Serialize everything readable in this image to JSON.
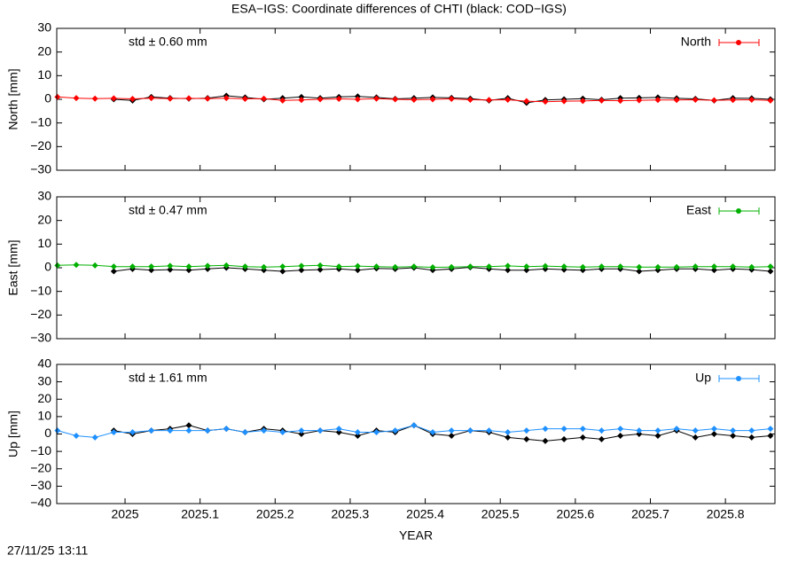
{
  "title": "ESA−IGS: Coordinate differences of CHTI (black: COD−IGS)",
  "timestamp": "27/11/25 13:11",
  "chart_data": [
    {
      "type": "line",
      "ylabel": "North [mm]",
      "annotation": "std ± 0.60 mm",
      "annotation_color": "#ff0000",
      "legend": "top-right",
      "x": [
        2024.91,
        2024.935,
        2024.96,
        2024.985,
        2025.01,
        2025.035,
        2025.06,
        2025.085,
        2025.11,
        2025.135,
        2025.16,
        2025.185,
        2025.21,
        2025.235,
        2025.26,
        2025.285,
        2025.31,
        2025.335,
        2025.36,
        2025.385,
        2025.41,
        2025.435,
        2025.46,
        2025.485,
        2025.51,
        2025.535,
        2025.56,
        2025.585,
        2025.61,
        2025.635,
        2025.66,
        2025.685,
        2025.71,
        2025.735,
        2025.76,
        2025.785,
        2025.81,
        2025.835,
        2025.86
      ],
      "xlim": [
        2024.909,
        2025.866
      ],
      "ylim": [
        -30,
        30
      ],
      "yticks": [
        {
          "value": -30,
          "label": "−30"
        },
        {
          "value": -20,
          "label": "−20"
        },
        {
          "value": -10,
          "label": "−10"
        },
        0,
        10,
        20,
        30
      ],
      "series": [
        {
          "color": "#000000",
          "values": [
            null,
            null,
            null,
            0,
            -0.5,
            1,
            0.5,
            0.3,
            0.5,
            1.5,
            0.8,
            0,
            0.5,
            1,
            0.5,
            1,
            1.2,
            0.8,
            0.2,
            0.5,
            0.8,
            0.6,
            0.3,
            -0.5,
            0.5,
            -1.5,
            -0.3,
            0,
            0.3,
            -0.2,
            0.5,
            0.6,
            0.8,
            0.4,
            0.2,
            -0.5,
            0.5,
            0.4,
            0
          ]
        },
        {
          "name": "North",
          "color": "#ff0000",
          "values": [
            1,
            0.5,
            0.3,
            0.4,
            0.2,
            0.5,
            0.3,
            0.4,
            0.3,
            0.5,
            0.2,
            0.3,
            -0.5,
            -0.3,
            0,
            0.2,
            0,
            0.3,
            0,
            -0.2,
            0,
            0.2,
            -0.2,
            -0.3,
            -0.2,
            -0.8,
            -1,
            -0.8,
            -0.7,
            -0.5,
            -0.6,
            -0.4,
            -0.3,
            -0.3,
            -0.2,
            -0.4,
            -0.3,
            -0.2,
            -0.5
          ]
        }
      ]
    },
    {
      "type": "line",
      "ylabel": "East [mm]",
      "annotation": "std ± 0.47 mm",
      "annotation_color": "#00b000",
      "legend": "top-right",
      "x": [
        2024.91,
        2024.935,
        2024.96,
        2024.985,
        2025.01,
        2025.035,
        2025.06,
        2025.085,
        2025.11,
        2025.135,
        2025.16,
        2025.185,
        2025.21,
        2025.235,
        2025.26,
        2025.285,
        2025.31,
        2025.335,
        2025.36,
        2025.385,
        2025.41,
        2025.435,
        2025.46,
        2025.485,
        2025.51,
        2025.535,
        2025.56,
        2025.585,
        2025.61,
        2025.635,
        2025.66,
        2025.685,
        2025.71,
        2025.735,
        2025.76,
        2025.785,
        2025.81,
        2025.835,
        2025.86
      ],
      "xlim": [
        2024.909,
        2025.866
      ],
      "ylim": [
        -30,
        30
      ],
      "yticks": [
        {
          "value": -30,
          "label": "−30"
        },
        {
          "value": -20,
          "label": "−20"
        },
        {
          "value": -10,
          "label": "−10"
        },
        0,
        10,
        20,
        30
      ],
      "series": [
        {
          "color": "#000000",
          "values": [
            null,
            null,
            null,
            -1.5,
            -0.5,
            -1,
            -0.8,
            -1,
            -0.5,
            0,
            -0.5,
            -1,
            -1.5,
            -1,
            -0.8,
            -0.5,
            -1,
            -0.3,
            -0.5,
            0,
            -1,
            -0.5,
            0.2,
            -0.5,
            -1,
            -1,
            -0.5,
            -0.8,
            -1,
            -0.5,
            -0.5,
            -1.5,
            -1,
            -0.5,
            -0.5,
            -1,
            -0.5,
            -0.8,
            -1.5
          ]
        },
        {
          "name": "East",
          "color": "#00b000",
          "values": [
            1,
            1.2,
            1,
            0.5,
            0.5,
            0.5,
            0.8,
            0.5,
            0.8,
            1,
            0.5,
            0.3,
            0.5,
            0.8,
            1,
            0.5,
            0.7,
            0.5,
            0.3,
            0.5,
            0.2,
            0.3,
            0.5,
            0.5,
            0.8,
            0.5,
            0.7,
            0.5,
            0.3,
            0.5,
            0.5,
            0.3,
            0.3,
            0.3,
            0.5,
            0.5,
            0.5,
            0.3,
            0.5
          ]
        }
      ]
    },
    {
      "type": "line",
      "ylabel": "Up [mm]",
      "xlabel": "YEAR",
      "annotation": "std ± 1.61 mm",
      "annotation_color": "#1e90ff",
      "legend": "top-right",
      "x": [
        2024.91,
        2024.935,
        2024.96,
        2024.985,
        2025.01,
        2025.035,
        2025.06,
        2025.085,
        2025.11,
        2025.135,
        2025.16,
        2025.185,
        2025.21,
        2025.235,
        2025.26,
        2025.285,
        2025.31,
        2025.335,
        2025.36,
        2025.385,
        2025.41,
        2025.435,
        2025.46,
        2025.485,
        2025.51,
        2025.535,
        2025.56,
        2025.585,
        2025.61,
        2025.635,
        2025.66,
        2025.685,
        2025.71,
        2025.735,
        2025.76,
        2025.785,
        2025.81,
        2025.835,
        2025.86
      ],
      "xlim": [
        2024.909,
        2025.866
      ],
      "xticks": [
        2025,
        2025.1,
        2025.2,
        2025.3,
        2025.4,
        2025.5,
        2025.6,
        2025.7,
        2025.8
      ],
      "ylim": [
        -40,
        40
      ],
      "yticks": [
        {
          "value": -40,
          "label": "−40"
        },
        {
          "value": -30,
          "label": "−30"
        },
        {
          "value": -20,
          "label": "−20"
        },
        {
          "value": -10,
          "label": "−10"
        },
        0,
        10,
        20,
        30,
        40
      ],
      "series": [
        {
          "color": "#000000",
          "values": [
            null,
            null,
            null,
            2,
            0,
            2,
            3,
            5,
            2,
            3,
            1,
            3,
            2,
            0,
            2,
            1,
            -1,
            2,
            1,
            5,
            0,
            -1,
            2,
            1,
            -2,
            -3,
            -4,
            -3,
            -2,
            -3,
            -1,
            0,
            -1,
            2,
            -2,
            0,
            -1,
            -2,
            -1
          ]
        },
        {
          "name": "Up",
          "color": "#1e90ff",
          "values": [
            2,
            -1,
            -2,
            1,
            1,
            2,
            2,
            2,
            2,
            3,
            1,
            2,
            1,
            2,
            2,
            3,
            1,
            1,
            2,
            5,
            1,
            2,
            2,
            2,
            1,
            2,
            3,
            3,
            3,
            2,
            3,
            2,
            2,
            3,
            2,
            3,
            2,
            2,
            3
          ]
        }
      ]
    }
  ]
}
